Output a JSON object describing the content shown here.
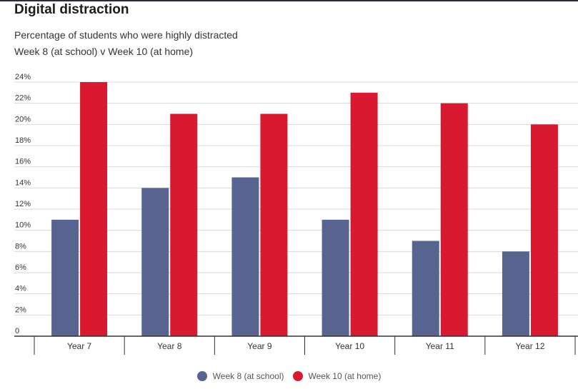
{
  "title": "Digital distraction",
  "subtitle_lines": [
    "Percentage of students who were highly distracted",
    "Week 8 (at school) v Week 10 (at home)"
  ],
  "colors": {
    "series1": "#56648f",
    "series2": "#d8192f",
    "grid": "#d9d9d9",
    "axis": "#333333"
  },
  "chart_data": {
    "type": "bar",
    "title": "Digital distraction",
    "categories": [
      "Year 7",
      "Year 8",
      "Year 9",
      "Year 10",
      "Year 11",
      "Year 12"
    ],
    "series": [
      {
        "name": "Week 8 (at school)",
        "values": [
          11,
          14,
          15,
          11,
          9,
          8
        ]
      },
      {
        "name": "Week 10 (at home)",
        "values": [
          24,
          21,
          21,
          23,
          22,
          20
        ]
      }
    ],
    "ylim": [
      0,
      24
    ],
    "yticks": [
      0,
      2,
      4,
      6,
      8,
      10,
      12,
      14,
      16,
      18,
      20,
      22,
      24
    ],
    "ytick_labels": [
      "0",
      "2%",
      "4%",
      "6%",
      "8%",
      "10%",
      "12%",
      "14%",
      "16%",
      "18%",
      "20%",
      "22%",
      "24%"
    ],
    "grid": true,
    "legend_position": "bottom"
  }
}
